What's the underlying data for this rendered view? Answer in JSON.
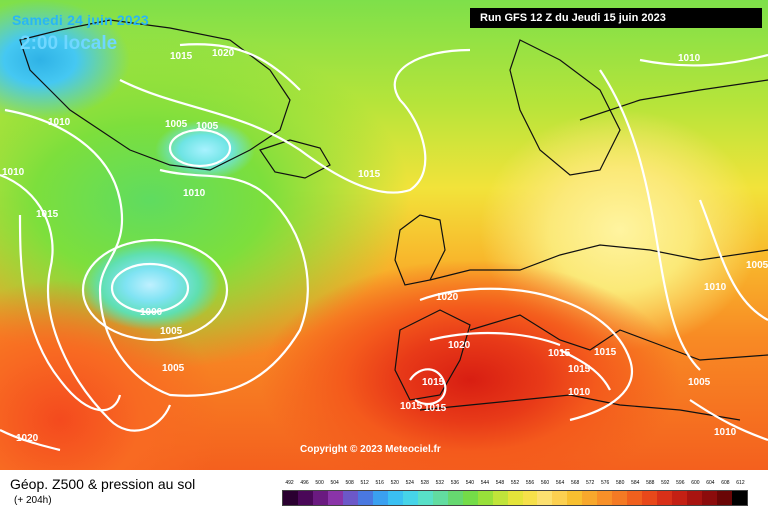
{
  "header": {
    "date": "Samedi 24 juin 2023",
    "time": "2:00 locale",
    "run": "Run GFS 12 Z du Jeudi 15 juin 2023"
  },
  "copyright": "Copyright © 2023 Meteociel.fr",
  "isobar_labels": [
    {
      "text": "1015"
    },
    {
      "text": "1020"
    },
    {
      "text": "1010"
    },
    {
      "text": "1005"
    },
    {
      "text": "1005"
    },
    {
      "text": "1010"
    },
    {
      "text": "1010"
    },
    {
      "text": "1015"
    },
    {
      "text": "1015"
    },
    {
      "text": "1000"
    },
    {
      "text": "1005"
    },
    {
      "text": "1005"
    },
    {
      "text": "1020"
    },
    {
      "text": "1010"
    },
    {
      "text": "1020"
    },
    {
      "text": "1020"
    },
    {
      "text": "1015"
    },
    {
      "text": "1015"
    },
    {
      "text": "1015"
    },
    {
      "text": "1015"
    },
    {
      "text": "1015"
    },
    {
      "text": "1015"
    },
    {
      "text": "1010"
    },
    {
      "text": "1005"
    },
    {
      "text": "1010"
    },
    {
      "text": "1005"
    }
  ],
  "footer": {
    "title": "Géop. Z500 & pression au sol",
    "subtitle": "(+ 204h)"
  },
  "scale": {
    "labels": [
      "492",
      "496",
      "500",
      "504",
      "508",
      "512",
      "516",
      "520",
      "524",
      "528",
      "532",
      "536",
      "540",
      "544",
      "548",
      "552",
      "556",
      "560",
      "564",
      "568",
      "572",
      "576",
      "580",
      "584",
      "588",
      "592",
      "596",
      "600",
      "604",
      "608",
      "612"
    ],
    "colors": [
      "#2a0030",
      "#4a0858",
      "#6a1a80",
      "#8a34a8",
      "#6c58c8",
      "#4a78e0",
      "#3aa0f0",
      "#3ac0f2",
      "#46d4e8",
      "#58e0c8",
      "#62dca0",
      "#66d870",
      "#74dc48",
      "#98e03a",
      "#c0e43a",
      "#e4e43a",
      "#f6e04a",
      "#fce070",
      "#fcd050",
      "#f8c030",
      "#f8a82c",
      "#f89028",
      "#f47a24",
      "#f0601e",
      "#e8481a",
      "#d83018",
      "#c42014",
      "#a81410",
      "#8c0c0c",
      "#6a0606",
      "#000000"
    ]
  }
}
